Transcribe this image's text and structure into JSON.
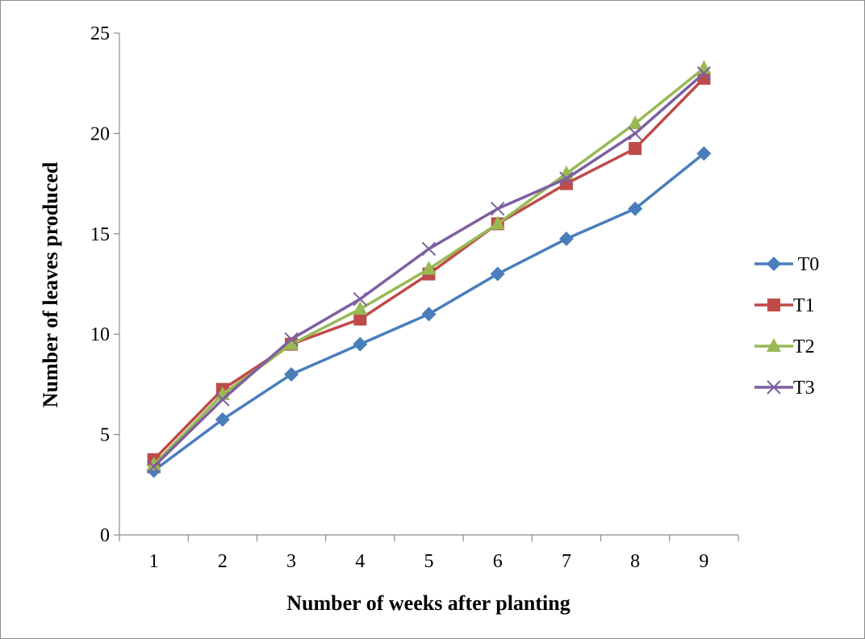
{
  "chart_data": {
    "type": "line",
    "title": "",
    "xlabel": "Number of weeks after planting",
    "ylabel": "Number of leaves produced",
    "categories": [
      "1",
      "2",
      "3",
      "4",
      "5",
      "6",
      "7",
      "8",
      "9"
    ],
    "ylim": [
      0,
      25
    ],
    "yticks": [
      "0",
      "5",
      "10",
      "15",
      "20",
      "25"
    ],
    "grid": false,
    "legend_position": "right",
    "series": [
      {
        "name": " T0",
        "marker": "diamond",
        "color": "#4a7ebb",
        "values": [
          3.2,
          5.75,
          8.0,
          9.5,
          11.0,
          13.0,
          14.75,
          16.25,
          19.0
        ]
      },
      {
        "name": "T1",
        "marker": "square",
        "color": "#be4b48",
        "values": [
          3.75,
          7.25,
          9.5,
          10.75,
          13.0,
          15.5,
          17.5,
          19.25,
          22.75
        ]
      },
      {
        "name": "T2",
        "marker": "triangle",
        "color": "#98b954",
        "values": [
          3.5,
          7.0,
          9.5,
          11.25,
          13.25,
          15.5,
          18.0,
          20.5,
          23.25
        ]
      },
      {
        "name": "T3",
        "marker": "x",
        "color": "#7d60a0",
        "values": [
          3.4,
          6.75,
          9.75,
          11.75,
          14.25,
          16.25,
          17.75,
          20.0,
          23.0
        ]
      }
    ]
  }
}
